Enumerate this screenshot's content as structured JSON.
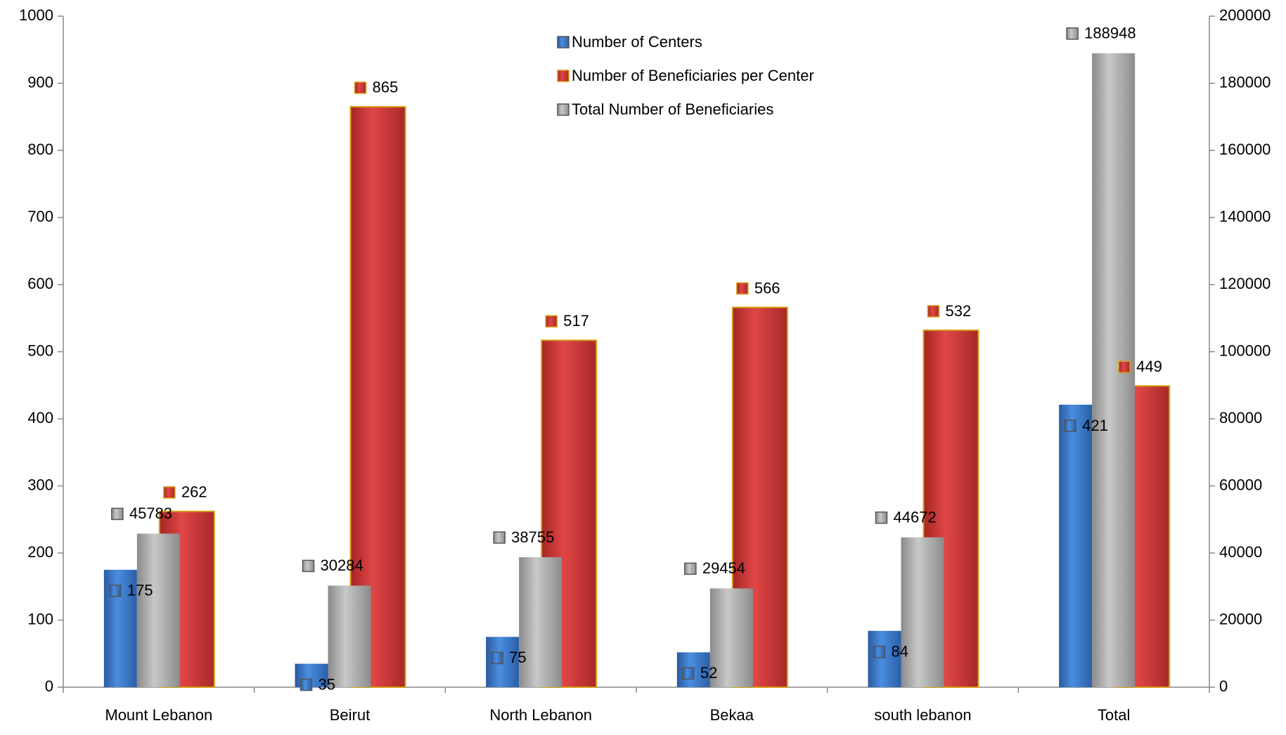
{
  "chart_data": {
    "type": "bar",
    "categories": [
      "Mount Lebanon",
      "Beirut",
      "North Lebanon",
      "Bekaa",
      "south lebanon",
      "Total"
    ],
    "series": [
      {
        "name": "Number of Centers",
        "color": "#3f7fd4",
        "values": [
          175,
          35,
          75,
          52,
          84,
          421
        ]
      },
      {
        "name": "Number of Beneficiaries per Center",
        "color": "#d43b3b",
        "values": [
          262,
          865,
          517,
          566,
          532,
          449
        ]
      },
      {
        "name": "Total Number of Beneficiaries",
        "color": "#b4b4b4",
        "axis": "y2",
        "values": [
          45783,
          30284,
          38755,
          29454,
          44672,
          188948
        ]
      }
    ],
    "ylim": [
      0,
      1000
    ],
    "yticks": [
      0,
      100,
      200,
      300,
      400,
      500,
      600,
      700,
      800,
      900,
      1000
    ],
    "y2lim": [
      0,
      200000
    ],
    "y2ticks": [
      0,
      20000,
      40000,
      60000,
      80000,
      100000,
      120000,
      140000,
      160000,
      180000,
      200000
    ],
    "legend": "top",
    "grid": false
  }
}
